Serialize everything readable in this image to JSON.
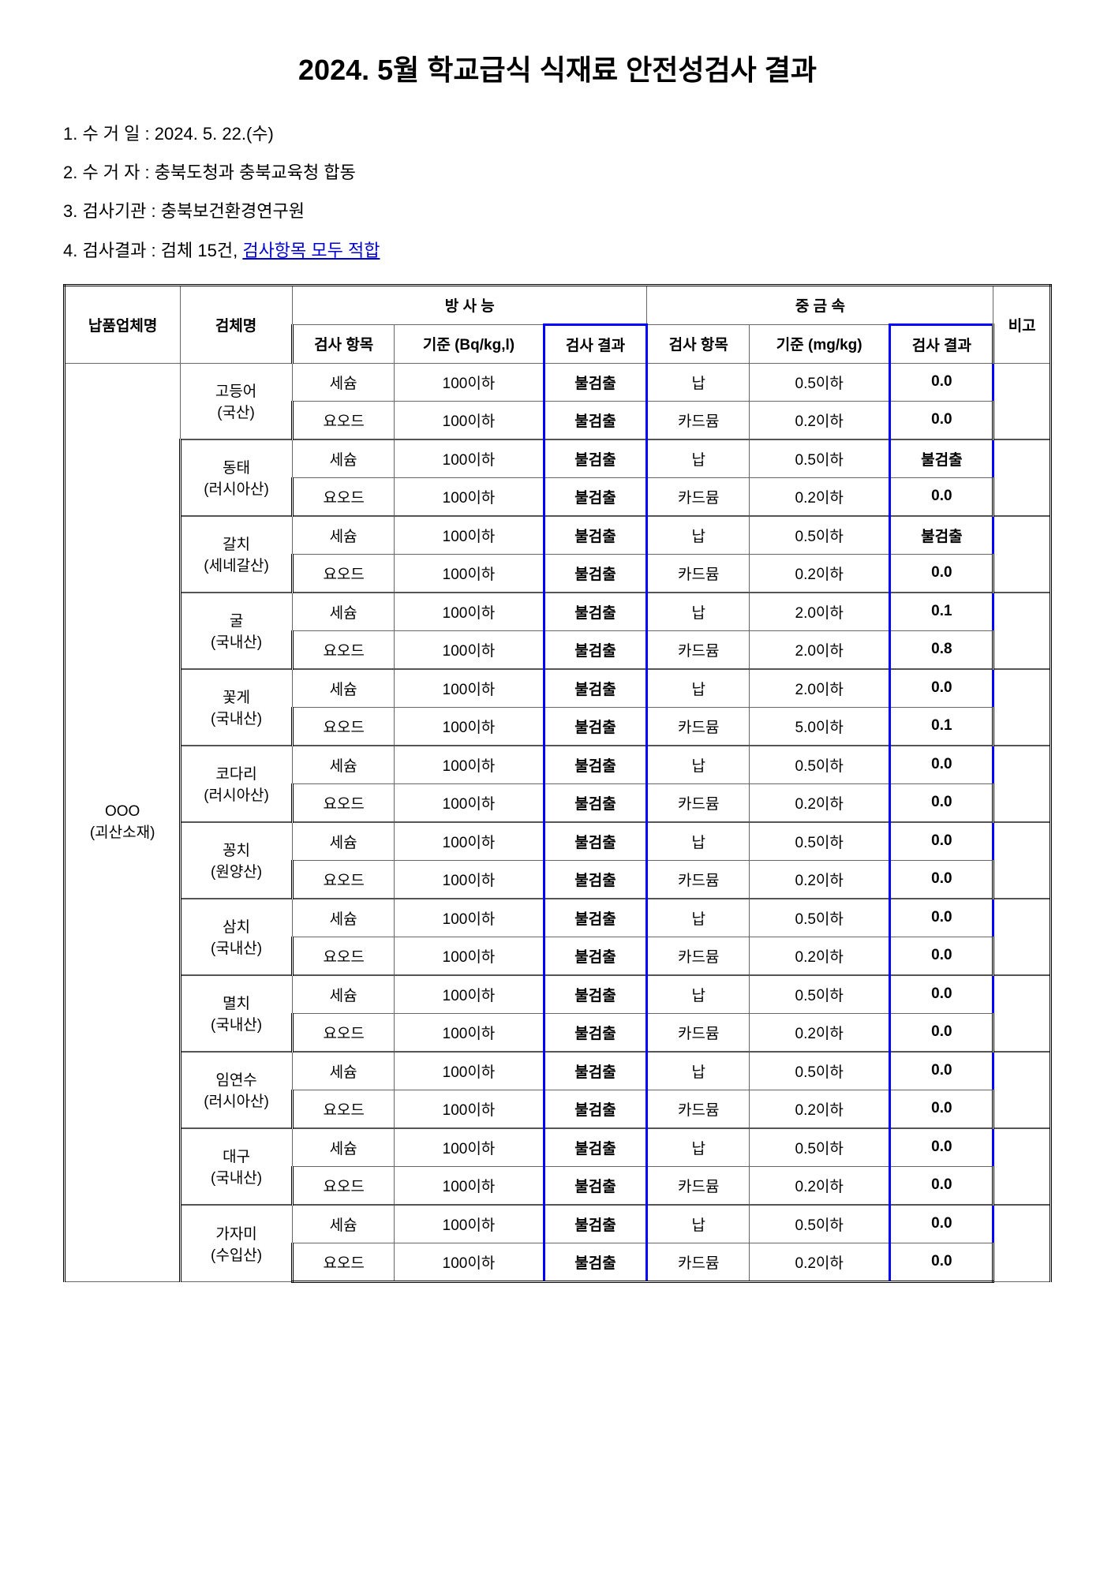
{
  "title": "2024. 5월 학교급식 식재료 안전성검사 결과",
  "info": {
    "item1_label": "1. 수 거 일 :",
    "item1_value": "2024. 5. 22.(수)",
    "item2_label": "2. 수 거 자 :",
    "item2_value": "충북도청과 충북교육청 합동",
    "item3_label": "3. 검사기관 :",
    "item3_value": "충북보건환경연구원",
    "item4_label": "4. 검사결과 :",
    "item4_value_a": "검체 15건,",
    "item4_value_b": "검사항목 모두 적합"
  },
  "headers": {
    "supplier": "납품업체명",
    "sample": "검체명",
    "radiation": "방 사 능",
    "heavymetal": "중 금 속",
    "note": "비고",
    "test_item": "검사\n항목",
    "standard_rad": "기준\n(Bq/kg,l)",
    "result": "검사\n결과",
    "standard_hm": "기준\n(mg/kg)"
  },
  "supplier": {
    "name": "OOO",
    "location": "(괴산소재)"
  },
  "samples": [
    {
      "name": "고등어",
      "origin": "(국산)",
      "r1": {
        "item": "세슘",
        "std": "100이하",
        "res": "불검출",
        "hitem": "납",
        "hstd": "0.5이하",
        "hres": "0.0"
      },
      "r2": {
        "item": "요오드",
        "std": "100이하",
        "res": "불검출",
        "hitem": "카드뮴",
        "hstd": "0.2이하",
        "hres": "0.0"
      }
    },
    {
      "name": "동태",
      "origin": "(러시아산)",
      "r1": {
        "item": "세슘",
        "std": "100이하",
        "res": "불검출",
        "hitem": "납",
        "hstd": "0.5이하",
        "hres": "불검출"
      },
      "r2": {
        "item": "요오드",
        "std": "100이하",
        "res": "불검출",
        "hitem": "카드뮴",
        "hstd": "0.2이하",
        "hres": "0.0"
      }
    },
    {
      "name": "갈치",
      "origin": "(세네갈산)",
      "r1": {
        "item": "세슘",
        "std": "100이하",
        "res": "불검출",
        "hitem": "납",
        "hstd": "0.5이하",
        "hres": "불검출"
      },
      "r2": {
        "item": "요오드",
        "std": "100이하",
        "res": "불검출",
        "hitem": "카드뮴",
        "hstd": "0.2이하",
        "hres": "0.0"
      }
    },
    {
      "name": "굴",
      "origin": "(국내산)",
      "r1": {
        "item": "세슘",
        "std": "100이하",
        "res": "불검출",
        "hitem": "납",
        "hstd": "2.0이하",
        "hres": "0.1"
      },
      "r2": {
        "item": "요오드",
        "std": "100이하",
        "res": "불검출",
        "hitem": "카드뮴",
        "hstd": "2.0이하",
        "hres": "0.8"
      }
    },
    {
      "name": "꽃게",
      "origin": "(국내산)",
      "r1": {
        "item": "세슘",
        "std": "100이하",
        "res": "불검출",
        "hitem": "납",
        "hstd": "2.0이하",
        "hres": "0.0"
      },
      "r2": {
        "item": "요오드",
        "std": "100이하",
        "res": "불검출",
        "hitem": "카드뮴",
        "hstd": "5.0이하",
        "hres": "0.1"
      }
    },
    {
      "name": "코다리",
      "origin": "(러시아산)",
      "r1": {
        "item": "세슘",
        "std": "100이하",
        "res": "불검출",
        "hitem": "납",
        "hstd": "0.5이하",
        "hres": "0.0"
      },
      "r2": {
        "item": "요오드",
        "std": "100이하",
        "res": "불검출",
        "hitem": "카드뮴",
        "hstd": "0.2이하",
        "hres": "0.0"
      }
    },
    {
      "name": "꽁치",
      "origin": "(원양산)",
      "r1": {
        "item": "세슘",
        "std": "100이하",
        "res": "불검출",
        "hitem": "납",
        "hstd": "0.5이하",
        "hres": "0.0"
      },
      "r2": {
        "item": "요오드",
        "std": "100이하",
        "res": "불검출",
        "hitem": "카드뮴",
        "hstd": "0.2이하",
        "hres": "0.0"
      }
    },
    {
      "name": "삼치",
      "origin": "(국내산)",
      "r1": {
        "item": "세슘",
        "std": "100이하",
        "res": "불검출",
        "hitem": "납",
        "hstd": "0.5이하",
        "hres": "0.0"
      },
      "r2": {
        "item": "요오드",
        "std": "100이하",
        "res": "불검출",
        "hitem": "카드뮴",
        "hstd": "0.2이하",
        "hres": "0.0"
      }
    },
    {
      "name": "멸치",
      "origin": "(국내산)",
      "r1": {
        "item": "세슘",
        "std": "100이하",
        "res": "불검출",
        "hitem": "납",
        "hstd": "0.5이하",
        "hres": "0.0"
      },
      "r2": {
        "item": "요오드",
        "std": "100이하",
        "res": "불검출",
        "hitem": "카드뮴",
        "hstd": "0.2이하",
        "hres": "0.0"
      }
    },
    {
      "name": "임연수",
      "origin": "(러시아산)",
      "r1": {
        "item": "세슘",
        "std": "100이하",
        "res": "불검출",
        "hitem": "납",
        "hstd": "0.5이하",
        "hres": "0.0"
      },
      "r2": {
        "item": "요오드",
        "std": "100이하",
        "res": "불검출",
        "hitem": "카드뮴",
        "hstd": "0.2이하",
        "hres": "0.0"
      }
    },
    {
      "name": "대구",
      "origin": "(국내산)",
      "r1": {
        "item": "세슘",
        "std": "100이하",
        "res": "불검출",
        "hitem": "납",
        "hstd": "0.5이하",
        "hres": "0.0"
      },
      "r2": {
        "item": "요오드",
        "std": "100이하",
        "res": "불검출",
        "hitem": "카드뮴",
        "hstd": "0.2이하",
        "hres": "0.0"
      }
    },
    {
      "name": "가자미",
      "origin": "(수입산)",
      "r1": {
        "item": "세슘",
        "std": "100이하",
        "res": "불검출",
        "hitem": "납",
        "hstd": "0.5이하",
        "hres": "0.0"
      },
      "r2": {
        "item": "요오드",
        "std": "100이하",
        "res": "불검출",
        "hitem": "카드뮴",
        "hstd": "0.2이하",
        "hres": "0.0"
      }
    }
  ]
}
